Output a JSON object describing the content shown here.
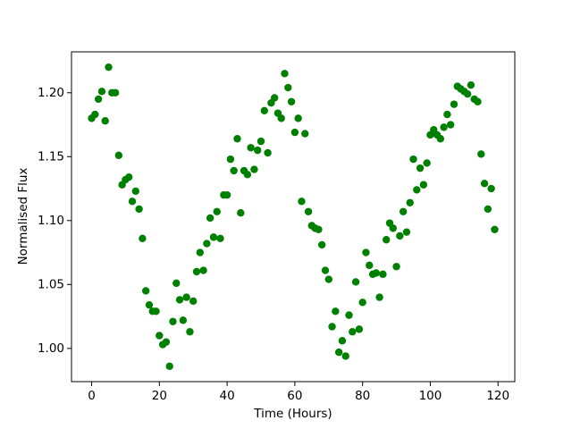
{
  "chart_data": {
    "type": "scatter",
    "x_label": "Time (Hours)",
    "y_label": "Normalised Flux",
    "color": "#008000",
    "x": [
      0,
      1,
      2,
      3,
      4,
      5,
      6,
      7,
      8,
      9,
      10,
      11,
      12,
      13,
      14,
      15,
      16,
      17,
      18,
      19,
      20,
      21,
      22,
      23,
      24,
      25,
      26,
      27,
      28,
      29,
      30,
      31,
      32,
      33,
      34,
      35,
      36,
      37,
      38,
      39,
      40,
      41,
      42,
      43,
      44,
      45,
      46,
      47,
      48,
      49,
      50,
      51,
      52,
      53,
      54,
      55,
      56,
      57,
      58,
      59,
      60,
      61,
      62,
      63,
      64,
      65,
      66,
      67,
      68,
      69,
      70,
      71,
      72,
      73,
      74,
      75,
      76,
      77,
      78,
      79,
      80,
      81,
      82,
      83,
      84,
      85,
      86,
      87,
      88,
      89,
      90,
      91,
      92,
      93,
      94,
      95,
      96,
      97,
      98,
      99,
      100,
      101,
      102,
      103,
      104,
      105,
      106,
      107,
      108,
      109,
      110,
      111,
      112,
      113,
      114,
      115,
      116,
      117,
      118,
      119
    ],
    "values": [
      1.18,
      1.183,
      1.195,
      1.201,
      1.178,
      1.22,
      1.2,
      1.2,
      1.151,
      1.128,
      1.132,
      1.134,
      1.115,
      1.123,
      1.109,
      1.086,
      1.045,
      1.034,
      1.029,
      1.029,
      1.01,
      1.003,
      1.005,
      0.986,
      1.021,
      1.051,
      1.038,
      1.022,
      1.04,
      1.013,
      1.037,
      1.06,
      1.075,
      1.061,
      1.082,
      1.102,
      1.087,
      1.107,
      1.086,
      1.12,
      1.12,
      1.148,
      1.139,
      1.164,
      1.106,
      1.139,
      1.136,
      1.157,
      1.14,
      1.155,
      1.162,
      1.186,
      1.153,
      1.192,
      1.196,
      1.184,
      1.18,
      1.215,
      1.204,
      1.193,
      1.169,
      1.18,
      1.115,
      1.168,
      1.107,
      1.096,
      1.094,
      1.093,
      1.081,
      1.061,
      1.054,
      1.017,
      1.029,
      0.997,
      1.006,
      0.994,
      1.026,
      1.013,
      1.052,
      1.015,
      1.036,
      1.075,
      1.065,
      1.058,
      1.059,
      1.04,
      1.058,
      1.085,
      1.098,
      1.094,
      1.064,
      1.088,
      1.107,
      1.091,
      1.114,
      1.148,
      1.124,
      1.141,
      1.128,
      1.145,
      1.167,
      1.171,
      1.167,
      1.164,
      1.173,
      1.183,
      1.175,
      1.191,
      1.205,
      1.203,
      1.201,
      1.199,
      1.206,
      1.195,
      1.193,
      1.152,
      1.129,
      1.109,
      1.125,
      1.093
    ],
    "xlim": [
      -5.95,
      124.95
    ],
    "xticks": [
      0,
      20,
      40,
      60,
      80,
      100,
      120
    ],
    "ylim": [
      0.974,
      1.232
    ],
    "yticks": [
      {
        "value": 1.0,
        "label": "1.00"
      },
      1.05,
      {
        "value": 1.1,
        "label": "1.10"
      },
      1.15,
      {
        "value": 1.2,
        "label": "1.20"
      }
    ]
  }
}
